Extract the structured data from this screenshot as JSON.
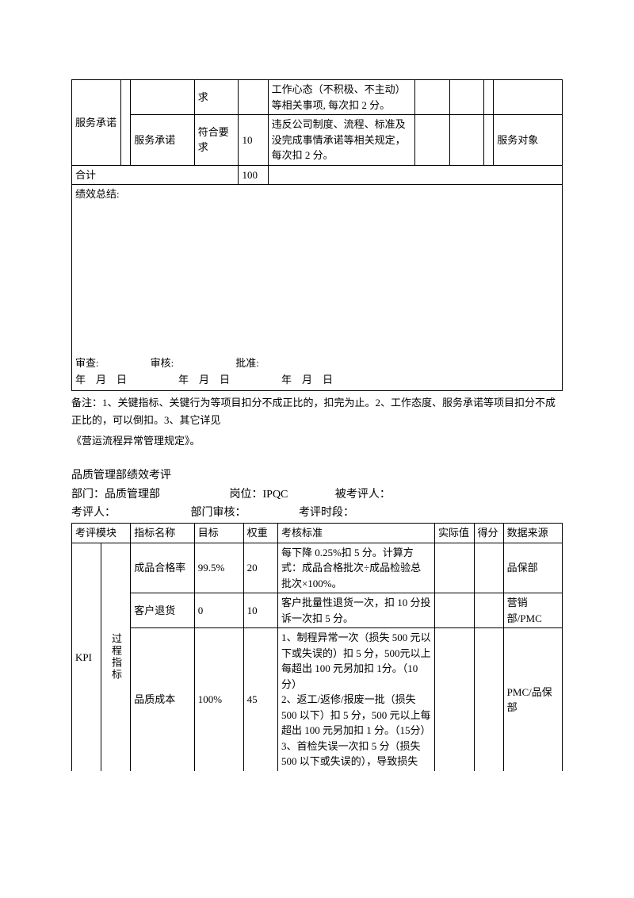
{
  "table1": {
    "rows": [
      {
        "c1": "服务承诺",
        "c1b": "",
        "c2": "",
        "c3": "求",
        "c4": "",
        "c5": "工作心态（不积极、不主动）等相关事项, 每次扣 2 分。",
        "c6": "",
        "c7": "",
        "c8": "",
        "c9": ""
      },
      {
        "c2": "服务承诺",
        "c3": "符合要求",
        "c4": "10",
        "c5": "违反公司制度、流程、标准及没完成事情承诺等相关规定，每次扣 2 分。",
        "c6": "",
        "c7": "",
        "c8": "",
        "c9": "服务对象"
      }
    ],
    "total_label": "合计",
    "total_weight": "100",
    "summary_label": "绩效总结:",
    "bottom_line1": "审查:　　　　　审核:　　　　　　批准:",
    "bottom_line2": "年　月　日　　　　　年　月　日　　　　　年　月　日"
  },
  "notes": "备注：1、关键指标、关键行为等项目扣分不成正比的，扣完为止。2、工作态度、服务承诺等项目扣分不成正比的，可以倒扣。3、其它详见",
  "notes2": "《营运流程异常管理规定》。",
  "section2": {
    "title": "品质管理部绩效考评",
    "line1_a": "部门：品质管理部",
    "line1_b": "岗位：IPQC",
    "line1_c": "被考评人：",
    "line2_a": "考评人：",
    "line2_b": "部门审核：",
    "line2_c": "考评时段：",
    "headers": {
      "module": "考评模块",
      "name": "指标名称",
      "target": "目标",
      "weight": "权重",
      "std": "考核标准",
      "actual": "实际值",
      "score": "得分",
      "src": "数据来源"
    },
    "module_label": "KPI",
    "sub_label": "过程指标",
    "rows": [
      {
        "name": "成品合格率",
        "target": "99.5%",
        "weight": "20",
        "std": "每下降 0.25%扣 5 分。计算方式：成品合格批次÷成品检验总批次×100%。",
        "src": "品保部"
      },
      {
        "name": "客户退货",
        "target": "0",
        "weight": "10",
        "std": "客户批量性退货一次，扣 10 分投诉一次扣 5 分。",
        "src": "营销部/PMC"
      },
      {
        "name": "品质成本",
        "target": "100%",
        "weight": "45",
        "std": "1、制程异常一次（损失 500 元以下或失误的）扣 5 分，500元以上每超出 100 元另加扣 1分。（10 分）\n2、返工/返修/报废一批（损失500 以下）扣 5 分，500 元以上每超出 100 元另加扣 1 分。（15分）\n3、首检失误一次扣 5 分（损失500 以下或失误的），导致损失",
        "src": "PMC/品保部"
      }
    ]
  }
}
